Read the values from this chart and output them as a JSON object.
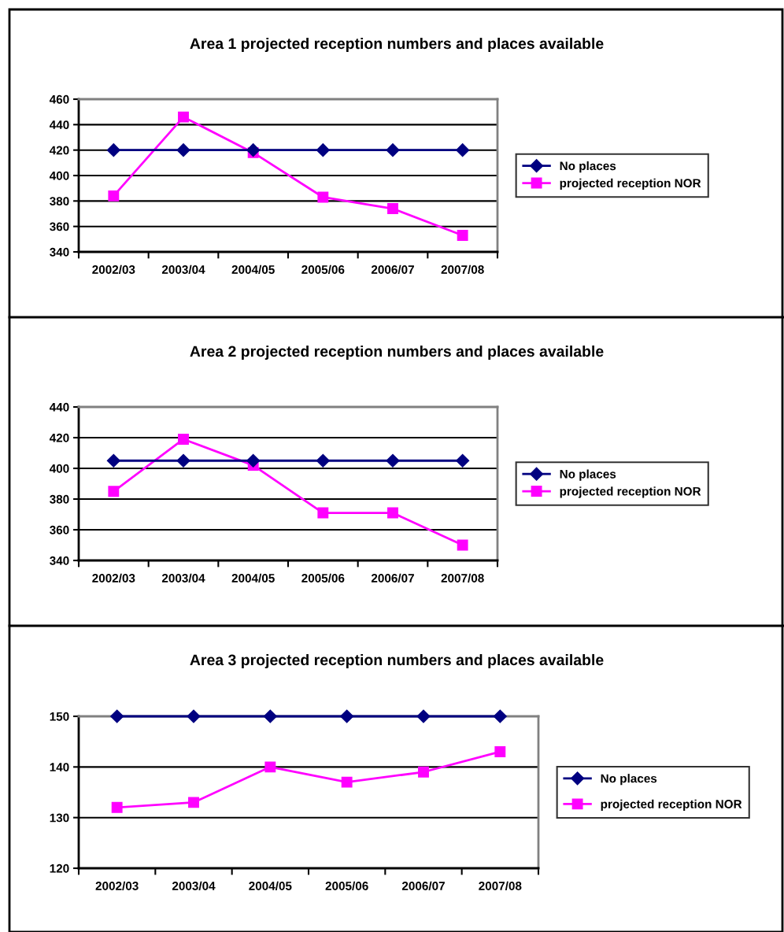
{
  "chart_data": [
    {
      "type": "line",
      "title": "Area 1 projected reception numbers and places available",
      "categories": [
        "2002/03",
        "2003/04",
        "2004/05",
        "2005/06",
        "2006/07",
        "2007/08"
      ],
      "series": [
        {
          "name": "No places",
          "color": "#000080",
          "marker": "diamond",
          "values": [
            420,
            420,
            420,
            420,
            420,
            420
          ]
        },
        {
          "name": "projected reception NOR",
          "color": "#ff00ff",
          "marker": "square",
          "values": [
            384,
            446,
            418,
            383,
            374,
            353
          ]
        }
      ],
      "ylim": [
        340,
        460
      ],
      "yticks": [
        340,
        360,
        380,
        400,
        420,
        440,
        460
      ],
      "grid": "y",
      "legend": "right"
    },
    {
      "type": "line",
      "title": "Area 2 projected reception numbers and places available",
      "categories": [
        "2002/03",
        "2003/04",
        "2004/05",
        "2005/06",
        "2006/07",
        "2007/08"
      ],
      "series": [
        {
          "name": "No places",
          "color": "#000080",
          "marker": "diamond",
          "values": [
            405,
            405,
            405,
            405,
            405,
            405
          ]
        },
        {
          "name": "projected reception NOR",
          "color": "#ff00ff",
          "marker": "square",
          "values": [
            385,
            419,
            402,
            371,
            371,
            350
          ]
        }
      ],
      "ylim": [
        340,
        440
      ],
      "yticks": [
        340,
        360,
        380,
        400,
        420,
        440
      ],
      "grid": "y",
      "legend": "right"
    },
    {
      "type": "line",
      "title": "Area 3 projected reception numbers and places available",
      "categories": [
        "2002/03",
        "2003/04",
        "2004/05",
        "2005/06",
        "2006/07",
        "2007/08"
      ],
      "series": [
        {
          "name": "No places",
          "color": "#000080",
          "marker": "diamond",
          "values": [
            150,
            150,
            150,
            150,
            150,
            150
          ]
        },
        {
          "name": "projected reception NOR",
          "color": "#ff00ff",
          "marker": "square",
          "values": [
            132,
            133,
            140,
            137,
            139,
            143
          ]
        }
      ],
      "ylim": [
        120,
        150
      ],
      "yticks": [
        120,
        130,
        140,
        150
      ],
      "grid": "y",
      "legend": "right"
    }
  ]
}
